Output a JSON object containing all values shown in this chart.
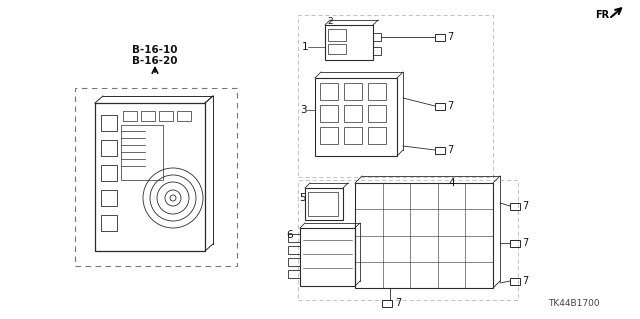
{
  "bg_color": "#ffffff",
  "fig_width": 6.4,
  "fig_height": 3.19,
  "dpi": 100,
  "diagram_label": "TK44B1700",
  "cross_ref": [
    "B-16-10",
    "B-16-20"
  ],
  "line_color": "#2a2a2a",
  "label_color": "#111111",
  "dash_color": "#555555",
  "light_color": "#888888"
}
